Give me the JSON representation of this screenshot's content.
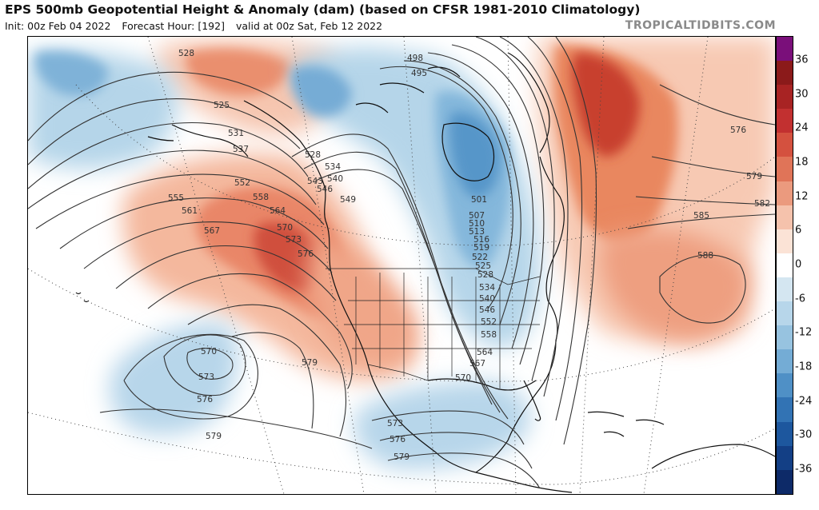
{
  "header": {
    "title": "EPS 500mb Geopotential Height & Anomaly (dam) (based on CFSR 1981-2010 Climatology)",
    "init": "Init: 00z Feb 04 2022",
    "forecast_hour": "Forecast Hour: [192]",
    "valid": "valid at 00z Sat, Feb 12 2022",
    "brand": "TROPICALTIDBITS.COM"
  },
  "colorbar": {
    "ticks": [
      "36",
      "30",
      "24",
      "18",
      "12",
      "6",
      "0",
      "-6",
      "-12",
      "-18",
      "-24",
      "-30",
      "-36"
    ],
    "colors": [
      "#7a0f7a",
      "#8b1a1a",
      "#a82323",
      "#c23030",
      "#d4513f",
      "#e07458",
      "#eb9a7e",
      "#f5c2ac",
      "#fbe3d6",
      "#ffffff",
      "#d4e6f1",
      "#b7d6ea",
      "#97c3e0",
      "#74acd5",
      "#4f90c6",
      "#3273b4",
      "#1d579e",
      "#133f85",
      "#0d2a68"
    ]
  },
  "contour_labels": [
    "528",
    "525",
    "531",
    "537",
    "552",
    "555",
    "558",
    "561",
    "564",
    "567",
    "570",
    "573",
    "576",
    "579",
    "528",
    "534",
    "540",
    "543",
    "546",
    "549",
    "498",
    "495",
    "501",
    "507",
    "510",
    "513",
    "516",
    "519",
    "522",
    "525",
    "528",
    "534",
    "540",
    "546",
    "552",
    "558",
    "564",
    "567",
    "570",
    "576",
    "579",
    "582",
    "585",
    "588",
    "570",
    "573",
    "576",
    "579",
    "573",
    "576",
    "579"
  ]
}
